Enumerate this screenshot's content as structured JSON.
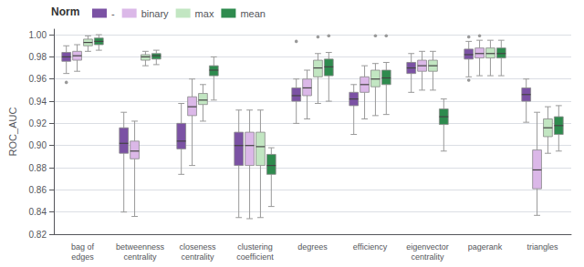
{
  "chart_data": {
    "type": "box",
    "categories": [
      "bag of\nedges",
      "betweenness\ncentrality",
      "closeness\ncentrality",
      "clustering\ncoefficient",
      "degrees",
      "efficiency",
      "eigenvector\ncentrality",
      "pagerank",
      "triangles"
    ],
    "ylabel": "ROC_AUC",
    "legend_title": "Norm",
    "legend": "top",
    "grid": true,
    "ylim": [
      0.82,
      1.005
    ],
    "yticks": [
      0.82,
      0.84,
      0.86,
      0.88,
      {
        "value": 0.9,
        "label": "0.90"
      },
      0.92,
      0.94,
      0.96,
      0.98,
      {
        "value": 1.0,
        "label": "1.00"
      }
    ],
    "series": [
      {
        "name": "-",
        "color": "#7b52a4",
        "values": [
          {
            "whislo": 0.965,
            "q1": 0.976,
            "median": 0.98,
            "q3": 0.984,
            "whishi": 0.99,
            "fliers": [
              0.957
            ]
          },
          {
            "whislo": 0.84,
            "q1": 0.893,
            "median": 0.902,
            "q3": 0.916,
            "whishi": 0.93,
            "fliers": []
          },
          {
            "whislo": 0.874,
            "q1": 0.897,
            "median": 0.904,
            "q3": 0.92,
            "whishi": 0.938,
            "fliers": []
          },
          {
            "whislo": 0.835,
            "q1": 0.882,
            "median": 0.9,
            "q3": 0.912,
            "whishi": 0.932,
            "fliers": []
          },
          {
            "whislo": 0.92,
            "q1": 0.94,
            "median": 0.945,
            "q3": 0.952,
            "whishi": 0.96,
            "fliers": [
              0.994
            ]
          },
          {
            "whislo": 0.91,
            "q1": 0.936,
            "median": 0.942,
            "q3": 0.948,
            "whishi": 0.955,
            "fliers": []
          },
          {
            "whislo": 0.948,
            "q1": 0.965,
            "median": 0.97,
            "q3": 0.975,
            "whishi": 0.983,
            "fliers": []
          },
          {
            "whislo": 0.962,
            "q1": 0.978,
            "median": 0.982,
            "q3": 0.987,
            "whishi": 0.994,
            "fliers": [
              0.959,
              0.998
            ]
          },
          {
            "whislo": 0.921,
            "q1": 0.94,
            "median": 0.946,
            "q3": 0.952,
            "whishi": 0.96,
            "fliers": []
          }
        ]
      },
      {
        "name": "binary",
        "color": "#dbb8e8",
        "values": [
          {
            "whislo": 0.967,
            "q1": 0.977,
            "median": 0.981,
            "q3": 0.985,
            "whishi": 0.991,
            "fliers": []
          },
          {
            "whislo": 0.836,
            "q1": 0.888,
            "median": 0.895,
            "q3": 0.904,
            "whishi": 0.922,
            "fliers": []
          },
          {
            "whislo": 0.882,
            "q1": 0.927,
            "median": 0.935,
            "q3": 0.944,
            "whishi": 0.96,
            "fliers": []
          },
          {
            "whislo": 0.834,
            "q1": 0.882,
            "median": 0.9,
            "q3": 0.912,
            "whishi": 0.932,
            "fliers": []
          },
          {
            "whislo": 0.924,
            "q1": 0.945,
            "median": 0.952,
            "q3": 0.96,
            "whishi": 0.968,
            "fliers": []
          },
          {
            "whislo": 0.924,
            "q1": 0.948,
            "median": 0.955,
            "q3": 0.962,
            "whishi": 0.972,
            "fliers": []
          },
          {
            "whislo": 0.95,
            "q1": 0.967,
            "median": 0.972,
            "q3": 0.977,
            "whishi": 0.985,
            "fliers": []
          },
          {
            "whislo": 0.963,
            "q1": 0.979,
            "median": 0.983,
            "q3": 0.988,
            "whishi": 0.995,
            "fliers": [
              0.999
            ]
          },
          {
            "whislo": 0.837,
            "q1": 0.861,
            "median": 0.878,
            "q3": 0.896,
            "whishi": 0.93,
            "fliers": []
          }
        ]
      },
      {
        "name": "max",
        "color": "#c2e6c2",
        "values": [
          {
            "whislo": 0.985,
            "q1": 0.99,
            "median": 0.993,
            "q3": 0.996,
            "whishi": 0.999,
            "fliers": []
          },
          {
            "whislo": 0.972,
            "q1": 0.977,
            "median": 0.98,
            "q3": 0.982,
            "whishi": 0.985,
            "fliers": []
          },
          {
            "whislo": 0.922,
            "q1": 0.937,
            "median": 0.941,
            "q3": 0.947,
            "whishi": 0.955,
            "fliers": []
          },
          {
            "whislo": 0.835,
            "q1": 0.882,
            "median": 0.899,
            "q3": 0.912,
            "whishi": 0.932,
            "fliers": []
          },
          {
            "whislo": 0.938,
            "q1": 0.962,
            "median": 0.97,
            "q3": 0.977,
            "whishi": 0.983,
            "fliers": [
              0.998
            ]
          },
          {
            "whislo": 0.927,
            "q1": 0.953,
            "median": 0.96,
            "q3": 0.968,
            "whishi": 0.974,
            "fliers": [
              0.999
            ]
          },
          {
            "whislo": 0.95,
            "q1": 0.967,
            "median": 0.972,
            "q3": 0.977,
            "whishi": 0.985,
            "fliers": []
          },
          {
            "whislo": 0.963,
            "q1": 0.979,
            "median": 0.983,
            "q3": 0.988,
            "whishi": 0.995,
            "fliers": []
          },
          {
            "whislo": 0.893,
            "q1": 0.908,
            "median": 0.916,
            "q3": 0.924,
            "whishi": 0.935,
            "fliers": []
          }
        ]
      },
      {
        "name": "mean",
        "color": "#2e8b4e",
        "values": [
          {
            "whislo": 0.986,
            "q1": 0.991,
            "median": 0.994,
            "q3": 0.997,
            "whishi": 1.0,
            "fliers": []
          },
          {
            "whislo": 0.973,
            "q1": 0.978,
            "median": 0.981,
            "q3": 0.983,
            "whishi": 0.986,
            "fliers": []
          },
          {
            "whislo": 0.941,
            "q1": 0.963,
            "median": 0.968,
            "q3": 0.972,
            "whishi": 0.98,
            "fliers": []
          },
          {
            "whislo": 0.845,
            "q1": 0.874,
            "median": 0.882,
            "q3": 0.892,
            "whishi": 0.898,
            "fliers": []
          },
          {
            "whislo": 0.94,
            "q1": 0.963,
            "median": 0.971,
            "q3": 0.978,
            "whishi": 0.984,
            "fliers": [
              0.999
            ]
          },
          {
            "whislo": 0.928,
            "q1": 0.955,
            "median": 0.961,
            "q3": 0.968,
            "whishi": 0.975,
            "fliers": [
              0.999
            ]
          },
          {
            "whislo": 0.895,
            "q1": 0.919,
            "median": 0.926,
            "q3": 0.933,
            "whishi": 0.942,
            "fliers": []
          },
          {
            "whislo": 0.963,
            "q1": 0.979,
            "median": 0.983,
            "q3": 0.988,
            "whishi": 0.995,
            "fliers": []
          },
          {
            "whislo": 0.895,
            "q1": 0.91,
            "median": 0.918,
            "q3": 0.926,
            "whishi": 0.936,
            "fliers": []
          }
        ]
      }
    ]
  }
}
